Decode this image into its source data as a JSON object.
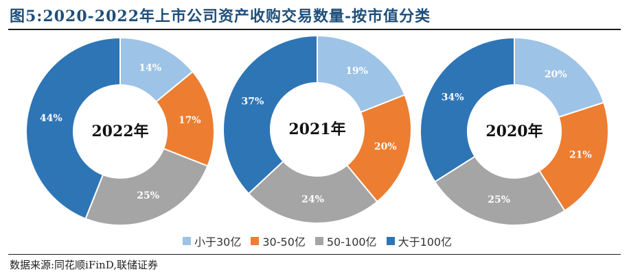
{
  "title": "图5:2020-2022年上市公司资产收购交易数量-按市值分类",
  "source": "数据来源:同花顺iFinD,联储证券",
  "chart_data": [
    {
      "type": "pie",
      "center_label": "2022年",
      "categories": [
        "小于30亿",
        "30-50亿",
        "50-100亿",
        "大于100亿"
      ],
      "values": [
        14,
        17,
        25,
        44
      ],
      "value_labels": [
        "14%",
        "17%",
        "25%",
        "44%"
      ]
    },
    {
      "type": "pie",
      "center_label": "2021年",
      "categories": [
        "小于30亿",
        "30-50亿",
        "50-100亿",
        "大于100亿"
      ],
      "values": [
        19,
        20,
        24,
        37
      ],
      "value_labels": [
        "19%",
        "20%",
        "24%",
        "37%"
      ]
    },
    {
      "type": "pie",
      "center_label": "2020年",
      "categories": [
        "小于30亿",
        "30-50亿",
        "50-100亿",
        "大于100亿"
      ],
      "values": [
        20,
        21,
        25,
        34
      ],
      "value_labels": [
        "20%",
        "21%",
        "25%",
        "34%"
      ]
    }
  ],
  "legend": [
    {
      "label": "小于30亿",
      "color": "#9dc3e6"
    },
    {
      "label": "30-50亿",
      "color": "#ed7d31"
    },
    {
      "label": "50-100亿",
      "color": "#a5a5a5"
    },
    {
      "label": "大于100亿",
      "color": "#2e75b6"
    }
  ],
  "label_colors": [
    "#ffffff",
    "#ffffff",
    "#ffffff",
    "#ffffff"
  ]
}
